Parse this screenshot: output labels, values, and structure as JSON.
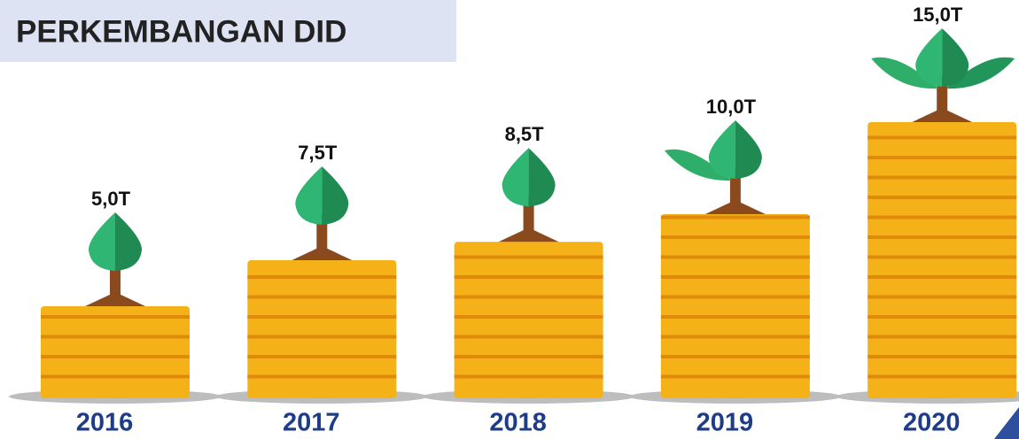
{
  "chart_data": {
    "type": "bar",
    "title": "PERKEMBANGAN DID",
    "categories": [
      "2016",
      "2017",
      "2018",
      "2019",
      "2020"
    ],
    "values": [
      5.0,
      7.5,
      8.5,
      10.0,
      15.0
    ],
    "value_labels": [
      "5,0T",
      "7,5T",
      "8,5T",
      "10,0T",
      "15,0T"
    ],
    "color": "#f5b118"
  }
}
